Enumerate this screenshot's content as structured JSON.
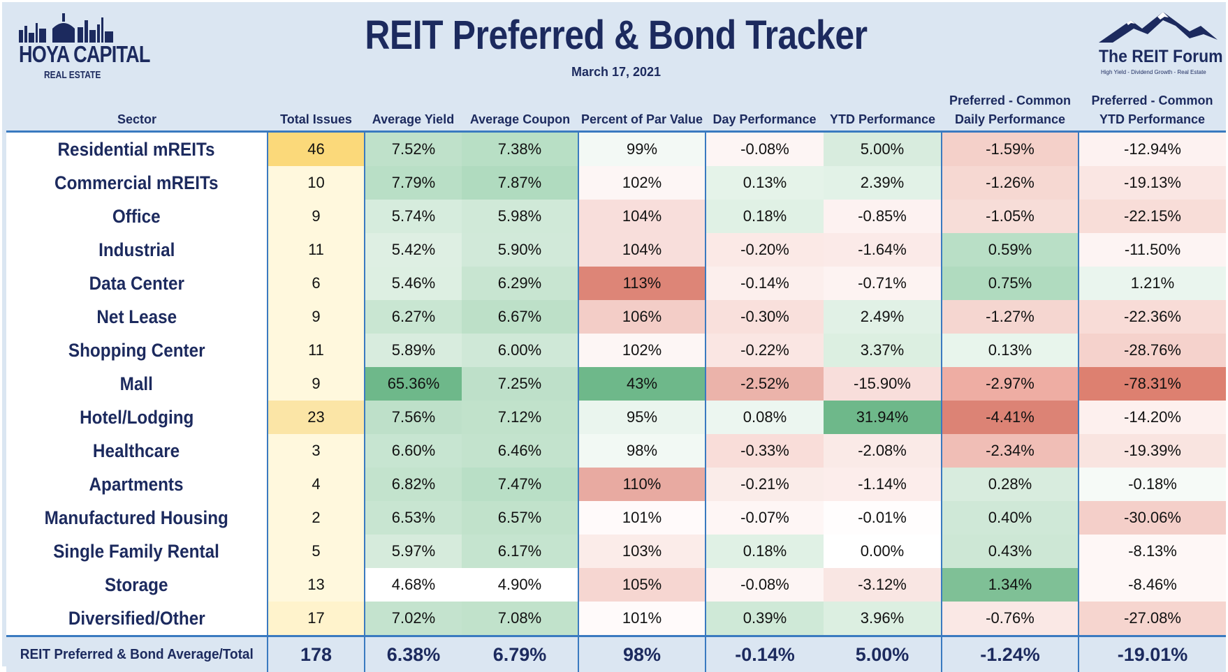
{
  "header": {
    "title": "REIT Preferred & Bond Tracker",
    "date": "March 17, 2021",
    "logo_left_main": "HOYA CAPITAL",
    "logo_left_sub": "REAL ESTATE",
    "logo_right_main": "The REIT Forum",
    "logo_right_sub": "High Yield - Dividend Growth - Real Estate"
  },
  "chart_data": {
    "type": "table",
    "columns": [
      {
        "key": "sector",
        "label": "Sector"
      },
      {
        "key": "issues",
        "label": "Total Issues"
      },
      {
        "key": "yield",
        "label": "Average Yield"
      },
      {
        "key": "coupon",
        "label": "Average Coupon"
      },
      {
        "key": "par",
        "label": "Percent of Par Value"
      },
      {
        "key": "day",
        "label": "Day Performance"
      },
      {
        "key": "ytd",
        "label": "YTD Performance"
      },
      {
        "key": "pc_day",
        "label": "Preferred - Common Daily Performance"
      },
      {
        "key": "pc_ytd",
        "label": "Preferred - Common YTD Performance"
      }
    ],
    "rows": [
      {
        "sector": "Residential mREITs",
        "issues": "46",
        "yield": "7.52%",
        "coupon": "7.38%",
        "par": "99%",
        "day": "-0.08%",
        "ytd": "5.00%",
        "pc_day": "-1.59%",
        "pc_ytd": "-12.94%"
      },
      {
        "sector": "Commercial mREITs",
        "issues": "10",
        "yield": "7.79%",
        "coupon": "7.87%",
        "par": "102%",
        "day": "0.13%",
        "ytd": "2.39%",
        "pc_day": "-1.26%",
        "pc_ytd": "-19.13%"
      },
      {
        "sector": "Office",
        "issues": "9",
        "yield": "5.74%",
        "coupon": "5.98%",
        "par": "104%",
        "day": "0.18%",
        "ytd": "-0.85%",
        "pc_day": "-1.05%",
        "pc_ytd": "-22.15%"
      },
      {
        "sector": "Industrial",
        "issues": "11",
        "yield": "5.42%",
        "coupon": "5.90%",
        "par": "104%",
        "day": "-0.20%",
        "ytd": "-1.64%",
        "pc_day": "0.59%",
        "pc_ytd": "-11.50%"
      },
      {
        "sector": "Data Center",
        "issues": "6",
        "yield": "5.46%",
        "coupon": "6.29%",
        "par": "113%",
        "day": "-0.14%",
        "ytd": "-0.71%",
        "pc_day": "0.75%",
        "pc_ytd": "1.21%"
      },
      {
        "sector": "Net Lease",
        "issues": "9",
        "yield": "6.27%",
        "coupon": "6.67%",
        "par": "106%",
        "day": "-0.30%",
        "ytd": "2.49%",
        "pc_day": "-1.27%",
        "pc_ytd": "-22.36%"
      },
      {
        "sector": "Shopping Center",
        "issues": "11",
        "yield": "5.89%",
        "coupon": "6.00%",
        "par": "102%",
        "day": "-0.22%",
        "ytd": "3.37%",
        "pc_day": "0.13%",
        "pc_ytd": "-28.76%"
      },
      {
        "sector": "Mall",
        "issues": "9",
        "yield": "65.36%",
        "coupon": "7.25%",
        "par": "43%",
        "day": "-2.52%",
        "ytd": "-15.90%",
        "pc_day": "-2.97%",
        "pc_ytd": "-78.31%"
      },
      {
        "sector": "Hotel/Lodging",
        "issues": "23",
        "yield": "7.56%",
        "coupon": "7.12%",
        "par": "95%",
        "day": "0.08%",
        "ytd": "31.94%",
        "pc_day": "-4.41%",
        "pc_ytd": "-14.20%"
      },
      {
        "sector": "Healthcare",
        "issues": "3",
        "yield": "6.60%",
        "coupon": "6.46%",
        "par": "98%",
        "day": "-0.33%",
        "ytd": "-2.08%",
        "pc_day": "-2.34%",
        "pc_ytd": "-19.39%"
      },
      {
        "sector": "Apartments",
        "issues": "4",
        "yield": "6.82%",
        "coupon": "7.47%",
        "par": "110%",
        "day": "-0.21%",
        "ytd": "-1.14%",
        "pc_day": "0.28%",
        "pc_ytd": "-0.18%"
      },
      {
        "sector": "Manufactured Housing",
        "issues": "2",
        "yield": "6.53%",
        "coupon": "6.57%",
        "par": "101%",
        "day": "-0.07%",
        "ytd": "-0.01%",
        "pc_day": "0.40%",
        "pc_ytd": "-30.06%"
      },
      {
        "sector": "Single Family Rental",
        "issues": "5",
        "yield": "5.97%",
        "coupon": "6.17%",
        "par": "103%",
        "day": "0.18%",
        "ytd": "0.00%",
        "pc_day": "0.43%",
        "pc_ytd": "-8.13%"
      },
      {
        "sector": "Storage",
        "issues": "13",
        "yield": "4.68%",
        "coupon": "4.90%",
        "par": "105%",
        "day": "-0.08%",
        "ytd": "-3.12%",
        "pc_day": "1.34%",
        "pc_ytd": "-8.46%"
      },
      {
        "sector": "Diversified/Other",
        "issues": "17",
        "yield": "7.02%",
        "coupon": "7.08%",
        "par": "101%",
        "day": "0.39%",
        "ytd": "3.96%",
        "pc_day": "-0.76%",
        "pc_ytd": "-27.08%"
      }
    ],
    "total": {
      "sector": "REIT Preferred & Bond Average/Total",
      "issues": "178",
      "yield": "6.38%",
      "coupon": "6.79%",
      "par": "98%",
      "day": "-0.14%",
      "ytd": "5.00%",
      "pc_day": "-1.24%",
      "pc_ytd": "-19.01%"
    },
    "cell_colors": {
      "issues": [
        "#fbd97a",
        "#fff8dd",
        "#fff8dd",
        "#fff8dd",
        "#fff8dd",
        "#fff8dd",
        "#fff8dd",
        "#fff8dd",
        "#fbe5a6",
        "#fff8dd",
        "#fff8dd",
        "#fff8dd",
        "#fff8dd",
        "#fff8dd",
        "#fff3cc"
      ],
      "yield": [
        "#bfe1ca",
        "#b9dfc6",
        "#d6ecdd",
        "#deefe3",
        "#ddefe2",
        "#c9e6d2",
        "#d8ecde",
        "#6eb88a",
        "#bee0c9",
        "#c7e5d1",
        "#c3e3cd",
        "#c8e5d1",
        "#d6ebdc",
        "#ffffff",
        "#c4e3ce"
      ],
      "coupon": [
        "#b8dfc5",
        "#b0dbbf",
        "#d0e9d8",
        "#d1e9d9",
        "#c8e5d1",
        "#bde0c8",
        "#cfe8d7",
        "#bee0c9",
        "#c1e2cb",
        "#c3e3cd",
        "#b9dfc6",
        "#c1e2cb",
        "#c5e4cf",
        "#ffffff",
        "#c1e2cb"
      ],
      "par": [
        "#f3f9f5",
        "#fdf6f5",
        "#f8dedb",
        "#f8dedb",
        "#dd8577",
        "#f3cdc7",
        "#fdf6f5",
        "#6eb88a",
        "#eaf5ee",
        "#f2f9f4",
        "#e8aaa1",
        "#fffafa",
        "#fbece9",
        "#f6d6d1",
        "#fffafa"
      ],
      "day": [
        "#fdf5f4",
        "#e5f3e9",
        "#e0f1e5",
        "#fbe9e6",
        "#fcefed",
        "#f9e0dc",
        "#fae6e3",
        "#ebb3aa",
        "#ecf6f0",
        "#f9ddd9",
        "#faece9",
        "#fef6f5",
        "#e0f1e5",
        "#fdf5f4",
        "#cfe9d7"
      ],
      "ytd": [
        "#d8ecde",
        "#e2f2e7",
        "#fdf2f1",
        "#fbeae8",
        "#fdf3f2",
        "#e1f1e6",
        "#dcefe1",
        "#f8dedb",
        "#6eb88a",
        "#faeae7",
        "#fcedeb",
        "#fffdfd",
        "#ffffff",
        "#f9e6e3",
        "#dcefe1"
      ],
      "pc_day": [
        "#f4d0c9",
        "#f6d8d2",
        "#f7ddd8",
        "#b9dfc6",
        "#b0dbbf",
        "#f5d6d0",
        "#e8f5ec",
        "#eeada3",
        "#dc8375",
        "#f0beb6",
        "#d8ecde",
        "#cfe8d7",
        "#cde7d5",
        "#7fc096",
        "#fae8e5"
      ],
      "pc_ytd": [
        "#fdf2f1",
        "#fae6e3",
        "#f8ddd8",
        "#fdf4f3",
        "#eaf5ee",
        "#f8dcd7",
        "#f5d2cc",
        "#dd8070",
        "#fdf0ee",
        "#f9e4e0",
        "#f6faf7",
        "#f4cfc9",
        "#fef7f6",
        "#fef7f6",
        "#f6d5cf"
      ]
    }
  }
}
